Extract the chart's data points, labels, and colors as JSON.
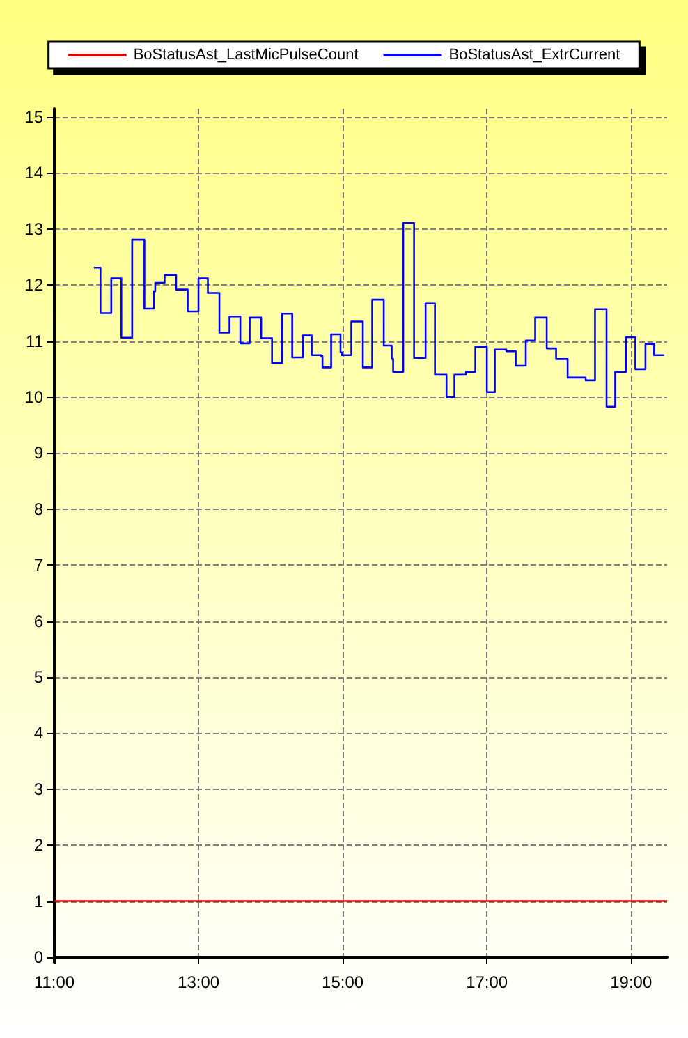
{
  "chart_data": {
    "type": "step",
    "legend": "top",
    "grid": true,
    "xlim": [
      11,
      19.5
    ],
    "ylim": [
      -0.1,
      15.15
    ],
    "xticks": [
      {
        "value": 11,
        "label": "11:00"
      },
      {
        "value": 13,
        "label": "13:00"
      },
      {
        "value": 15,
        "label": "15:00"
      },
      {
        "value": 17,
        "label": "17:00"
      },
      {
        "value": 19,
        "label": "19:00"
      }
    ],
    "yticks": [
      0,
      1,
      2,
      3,
      4,
      5,
      6,
      7,
      8,
      9,
      10,
      11,
      12,
      13,
      14,
      15
    ],
    "series": [
      {
        "name": "BoStatusAst_LastMicPulseCount",
        "color": "#e00000",
        "type": "line",
        "x": [
          11,
          19.5
        ],
        "values": [
          1,
          1
        ]
      },
      {
        "name": "BoStatusAst_ExtrCurrent",
        "color": "#0000ff",
        "x": [
          11.55,
          11.64,
          11.79,
          11.93,
          12.08,
          12.25,
          12.38,
          12.4,
          12.53,
          12.69,
          12.85,
          13.0,
          13.13,
          13.29,
          13.43,
          13.58,
          13.71,
          13.87,
          14.02,
          14.16,
          14.3,
          14.45,
          14.57,
          14.7,
          14.72,
          14.84,
          14.97,
          14.99,
          15.12,
          15.28,
          15.41,
          15.57,
          15.68,
          15.7,
          15.84,
          15.99,
          16.15,
          16.28,
          16.44,
          16.55,
          16.71,
          16.84,
          17.0,
          17.11,
          17.27,
          17.4,
          17.54,
          17.67,
          17.83,
          17.96,
          18.12,
          18.37,
          18.5,
          18.66,
          18.78,
          18.93,
          19.06,
          19.2,
          19.32,
          19.46
        ],
        "values": [
          12.31,
          11.5,
          12.12,
          11.06,
          12.81,
          11.58,
          11.89,
          12.04,
          12.18,
          11.92,
          11.53,
          12.12,
          11.86,
          11.15,
          11.44,
          10.96,
          11.42,
          11.05,
          10.61,
          11.49,
          10.71,
          11.1,
          10.75,
          10.73,
          10.53,
          11.12,
          10.8,
          10.75,
          11.35,
          10.53,
          11.74,
          10.92,
          10.68,
          10.45,
          13.11,
          10.7,
          11.67,
          10.4,
          10.0,
          10.4,
          10.45,
          10.9,
          10.09,
          10.85,
          10.82,
          10.56,
          11.01,
          11.42,
          10.87,
          10.68,
          10.35,
          10.3,
          11.57,
          9.83,
          10.45,
          11.07,
          10.5,
          10.95,
          10.75,
          10.75
        ]
      }
    ]
  }
}
